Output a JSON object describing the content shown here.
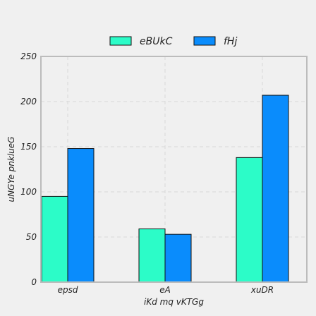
{
  "chart_data": {
    "type": "bar",
    "title": "",
    "xlabel": "iKd mq vKTGg",
    "ylabel": "uNGYe pnklueG",
    "categories": [
      "epsd",
      "eA",
      "xuDR"
    ],
    "series": [
      {
        "name": "eBUkC",
        "values": [
          95,
          59,
          138
        ],
        "color": "#2cfcc8"
      },
      {
        "name": "fHj",
        "values": [
          148,
          53,
          207
        ],
        "color": "#0a8cfc"
      }
    ],
    "ylim": [
      0,
      250
    ],
    "yticks": [
      0,
      50,
      100,
      150,
      200,
      250
    ],
    "grid": true,
    "legend_position": "top-center",
    "background_color": "#f0f0f0",
    "plot_background_color": "#f0f0f0",
    "grid_color": "#d8d8d8",
    "axis_color": "#bcbcbc",
    "bar_edge_color": "#111111"
  }
}
